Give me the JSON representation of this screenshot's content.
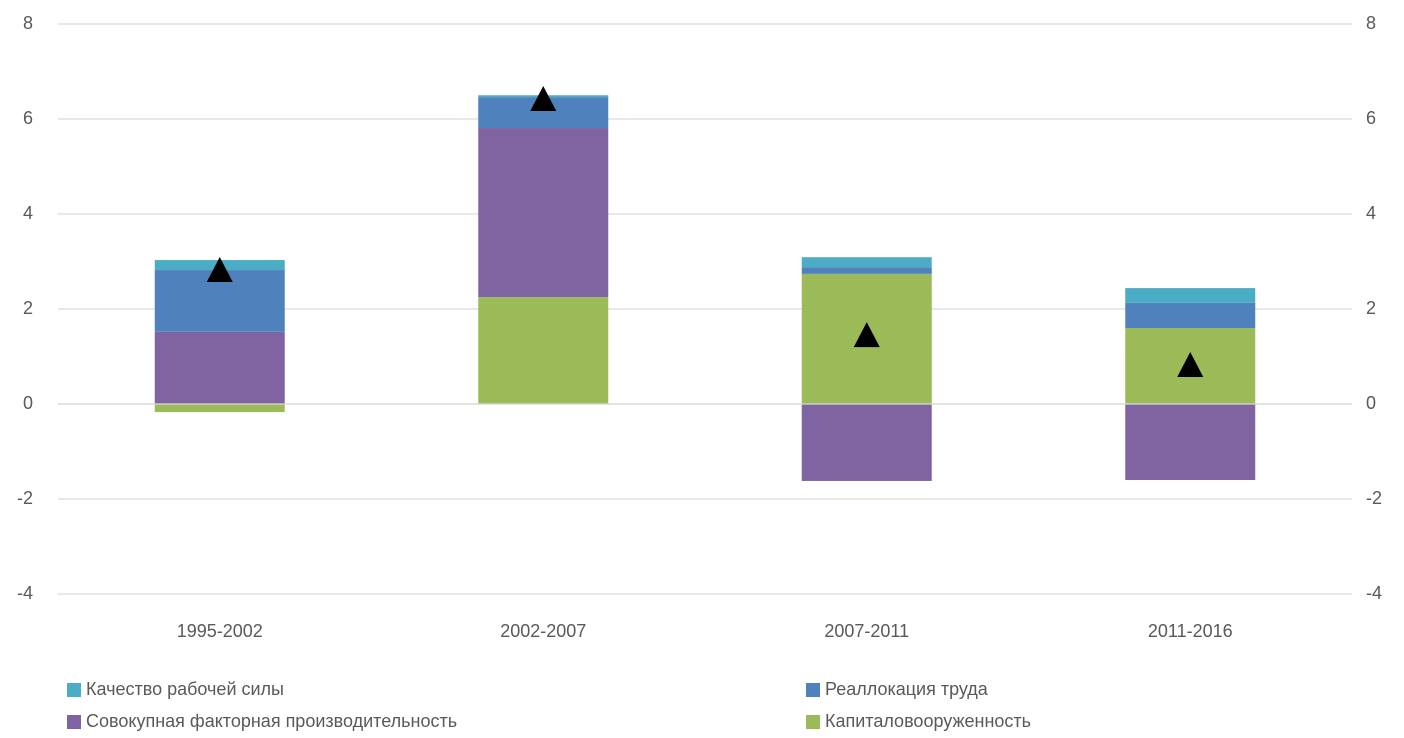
{
  "chart_data": {
    "type": "stacked_bar",
    "categories": [
      "1995-2002",
      "2002-2007",
      "2007-2011",
      "2011-2016"
    ],
    "series": [
      {
        "name": "Качество рабочей силы",
        "color": "#4bacc6",
        "values": [
          0.21,
          0.04,
          0.21,
          0.31
        ]
      },
      {
        "name": "Реаллокация труда",
        "color": "#4f81bd",
        "values": [
          1.3,
          0.65,
          0.14,
          0.53
        ]
      },
      {
        "name": "Совокупная факторная производительность",
        "color": "#8064a2",
        "values": [
          1.52,
          3.56,
          -1.62,
          -1.6
        ]
      },
      {
        "name": "Капиталовооруженность",
        "color": "#9bbb59",
        "values": [
          -0.17,
          2.25,
          2.74,
          1.6
        ]
      }
    ],
    "markers": {
      "color": "#000000",
      "values": [
        2.82,
        6.42,
        1.45,
        0.82
      ]
    },
    "ylim": [
      -4,
      8
    ],
    "yticks": [
      -4,
      -2,
      0,
      2,
      4,
      6,
      8
    ],
    "y2lim": [
      -4,
      8
    ],
    "y2ticks": [
      -4,
      -2,
      0,
      2,
      4,
      6,
      8
    ],
    "grid": true
  }
}
